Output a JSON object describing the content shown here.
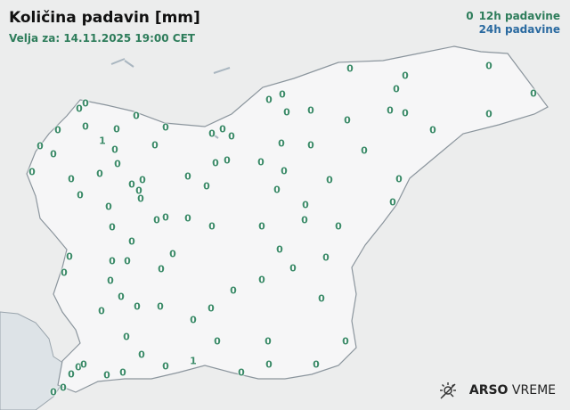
{
  "header": {
    "title": "Količina padavin [mm]",
    "valid": "Velja za: 14.11.2025 19:00 CET"
  },
  "legend": {
    "sample_value": "0",
    "label_12h": "12h padavine",
    "label_24h": "24h padavine",
    "color_12h": "#2e7d5b",
    "color_24h": "#2a6aa0"
  },
  "logo": {
    "text_bold": "ARSO",
    "text": "VREME",
    "icon": "sun-weather-icon"
  },
  "stations": [
    "0",
    "0",
    "0",
    "0",
    "0",
    "0",
    "0",
    "0",
    "0",
    "0",
    "0",
    "0",
    "0",
    "0",
    "0",
    "0",
    "0",
    "0",
    "0",
    "0",
    "0",
    "0",
    "0",
    "0",
    "0",
    "1",
    "0",
    "0",
    "0",
    "0",
    "0",
    "0",
    "0",
    "0",
    "0",
    "0",
    "0",
    "0",
    "0",
    "0",
    "0",
    "0",
    "0",
    "0",
    "0",
    "0",
    "0",
    "0",
    "0",
    "0",
    "0",
    "0",
    "0",
    "0",
    "0",
    "0",
    "0",
    "0",
    "0",
    "0",
    "0",
    "0",
    "0",
    "0",
    "0",
    "0",
    "0",
    "0",
    "0",
    "0",
    "0",
    "0",
    "0",
    "0",
    "0",
    "0",
    "0",
    "0",
    "0",
    "0",
    "0",
    "0",
    "0",
    "0",
    "0",
    "0",
    "0",
    "0",
    "0",
    "0",
    "0",
    "1",
    "0",
    "0",
    "0",
    "0",
    "0",
    "0"
  ]
}
